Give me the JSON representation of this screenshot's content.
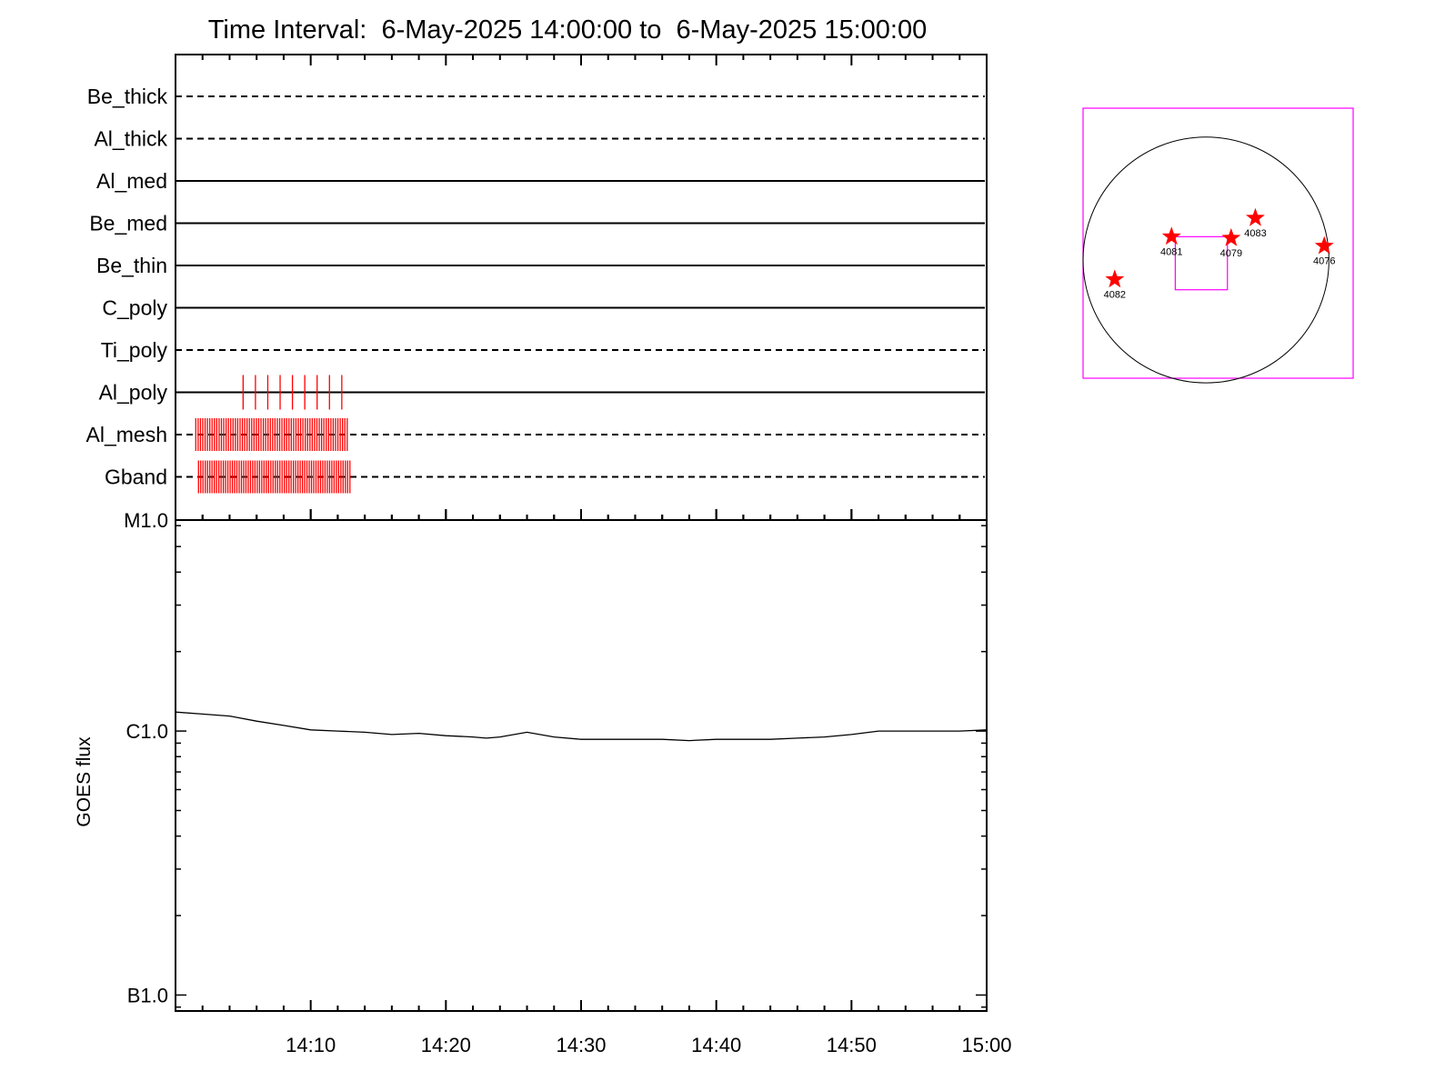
{
  "chart_data": [
    {
      "type": "line",
      "panel": "filter-timeline",
      "title": "Time Interval:  6-May-2025 14:00:00 to  6-May-2025 15:00:00",
      "xlim": [
        "14:00",
        "15:00"
      ],
      "filters": [
        {
          "name": "Be_thick",
          "style": "dashed"
        },
        {
          "name": "Al_thick",
          "style": "dashed"
        },
        {
          "name": "Al_med",
          "style": "solid"
        },
        {
          "name": "Be_med",
          "style": "solid"
        },
        {
          "name": "Be_thin",
          "style": "solid"
        },
        {
          "name": "C_poly",
          "style": "solid"
        },
        {
          "name": "Ti_poly",
          "style": "dashed"
        },
        {
          "name": "Al_poly",
          "style": "solid"
        },
        {
          "name": "Al_mesh",
          "style": "dashed"
        },
        {
          "name": "Gband",
          "style": "dashed"
        }
      ],
      "observations": [
        {
          "filter": "Al_poly",
          "start_min": 5.0,
          "end_min": 12.3,
          "count": 9
        },
        {
          "filter": "Al_mesh",
          "start_min": 1.5,
          "end_min": 12.7,
          "count": 66
        },
        {
          "filter": "Gband",
          "start_min": 1.7,
          "end_min": 12.9,
          "count": 68
        }
      ],
      "mark_color": "#ff0000"
    },
    {
      "type": "line",
      "panel": "goes-flux",
      "ylabel": "GOES flux",
      "yscale": "log",
      "y_tick_labels": [
        "B1.0",
        "C1.0",
        "M1.0"
      ],
      "ylim": [
        8.7e-08,
        6.3e-06
      ],
      "x_tick_labels": [
        "14:10",
        "14:20",
        "14:30",
        "14:40",
        "14:50",
        "15:00"
      ],
      "xlim": [
        "14:00",
        "15:00"
      ],
      "series": [
        {
          "x": [
            "14:00",
            "14:02",
            "14:04",
            "14:06",
            "14:08",
            "14:10",
            "14:12",
            "14:14",
            "14:16",
            "14:18",
            "14:20",
            "14:22",
            "14:23",
            "14:24",
            "14:26",
            "14:28",
            "14:30",
            "14:32",
            "14:34",
            "14:36",
            "14:38",
            "14:40",
            "14:42",
            "14:44",
            "14:46",
            "14:48",
            "14:50",
            "14:52",
            "14:54",
            "14:56",
            "14:58",
            "15:00"
          ],
          "y": [
            1.18e-06,
            1.16e-06,
            1.14e-06,
            1.09e-06,
            1.05e-06,
            1.01e-06,
            1e-06,
            9.9e-07,
            9.7e-07,
            9.8e-07,
            9.6e-07,
            9.5e-07,
            9.4e-07,
            9.5e-07,
            9.9e-07,
            9.5e-07,
            9.3e-07,
            9.3e-07,
            9.3e-07,
            9.3e-07,
            9.2e-07,
            9.3e-07,
            9.3e-07,
            9.3e-07,
            9.4e-07,
            9.5e-07,
            9.7e-07,
            1e-06,
            1e-06,
            1e-06,
            1e-06,
            1.01e-06
          ]
        }
      ]
    },
    {
      "type": "scatter",
      "panel": "solar-disk-map",
      "box_color": "#ff00ff",
      "star_color": "#ff0000",
      "points": [
        {
          "label": "4081",
          "x": -370,
          "y": 250
        },
        {
          "label": "4079",
          "x": 270,
          "y": 235
        },
        {
          "label": "4083",
          "x": 530,
          "y": 450
        },
        {
          "label": "4076",
          "x": 1270,
          "y": 150
        },
        {
          "label": "4082",
          "x": -980,
          "y": -210
        }
      ],
      "xlim": [
        -1320,
        1580
      ],
      "ylim": [
        -1270,
        1630
      ]
    }
  ]
}
